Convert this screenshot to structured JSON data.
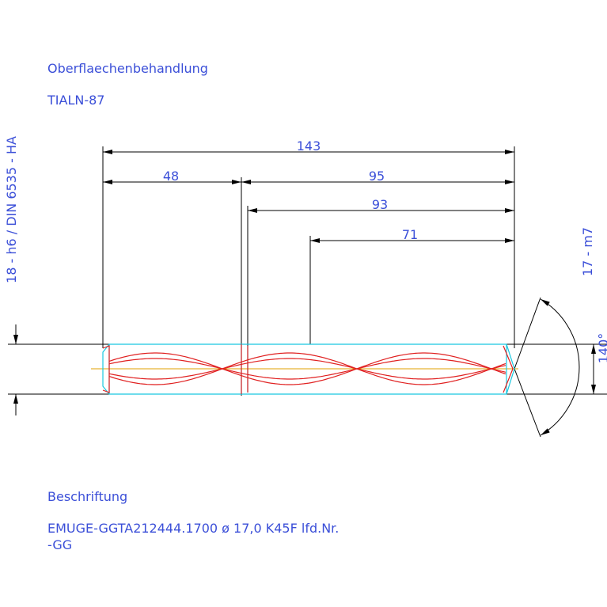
{
  "header": {
    "title": "Oberflaechenbehandlung",
    "value": "TIALN-87"
  },
  "left_label": "18 - h6 / DIN 6535 - HA",
  "dimensions": {
    "total": "143",
    "shank": "48",
    "body": "95",
    "flute": "93",
    "cut": "71"
  },
  "right_label": "17 - m7",
  "angle_label": "140°",
  "footer": {
    "title": "Beschriftung",
    "line1": "EMUGE-GGTA212444.1700 ø 17,0  K45F lfd.Nr.",
    "line2": "-GG"
  }
}
